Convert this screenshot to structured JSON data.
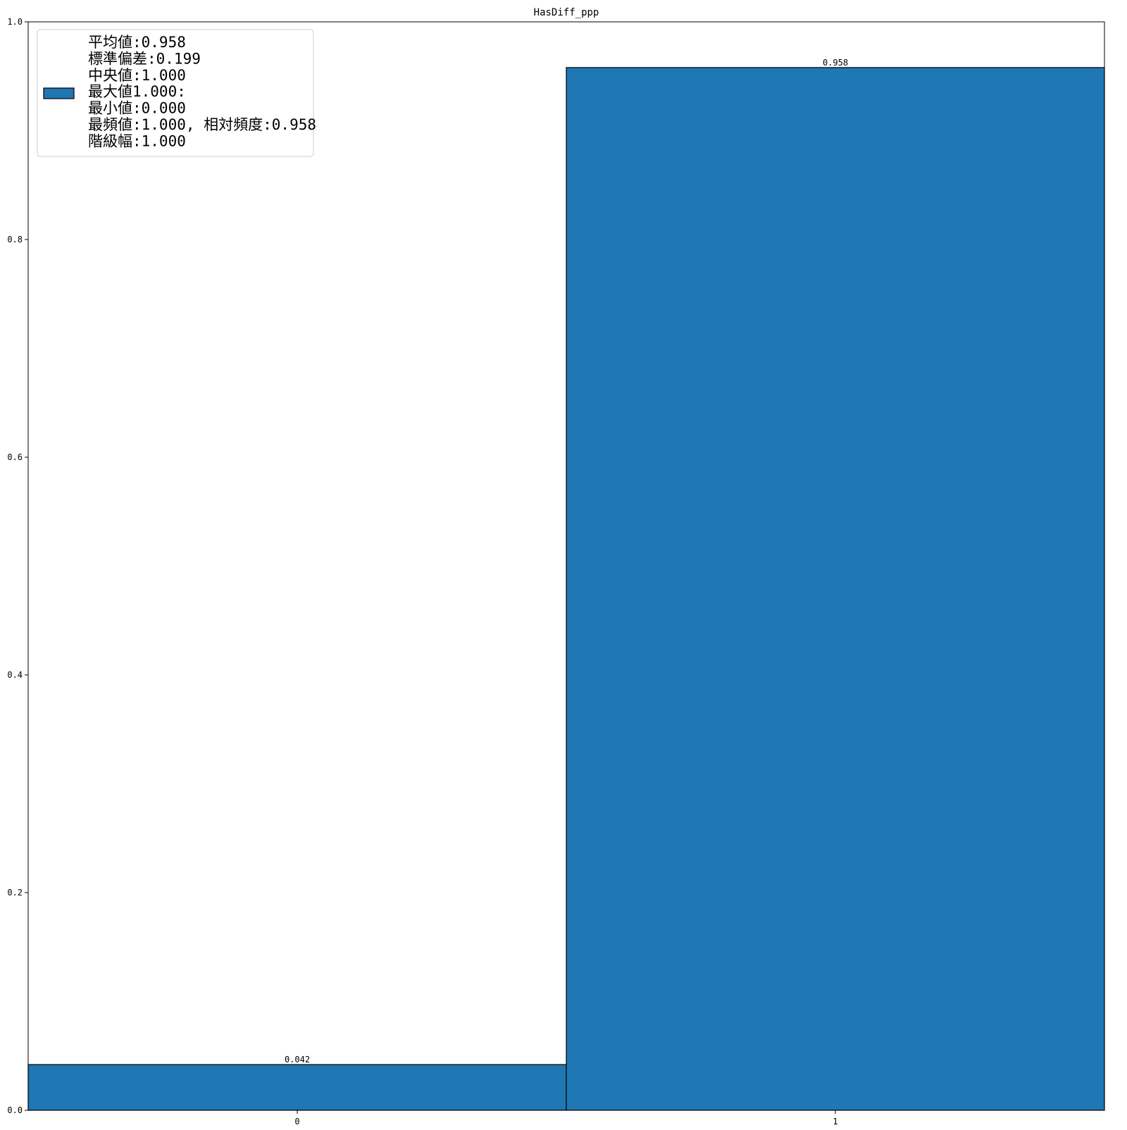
{
  "chart_data": {
    "type": "bar",
    "title": "HasDiff_ppp",
    "xlabel": "",
    "ylabel": "",
    "categories": [
      "0",
      "1"
    ],
    "values": [
      0.042,
      0.958
    ],
    "bar_labels": [
      "0.042",
      "0.958"
    ],
    "ylim": [
      0,
      1.0
    ],
    "xlim": [
      -0.5,
      1.5
    ],
    "yticks": [
      0.0,
      0.2,
      0.4,
      0.6,
      0.8,
      1.0
    ],
    "ytick_labels": [
      "0.0",
      "0.2",
      "0.4",
      "0.6",
      "0.8",
      "1.0"
    ],
    "grid": false,
    "legend": {
      "placement": "upper-left",
      "lines": [
        "平均値:0.958",
        "標準偏差:0.199",
        "中央値:1.000",
        "最大値1.000:",
        "最小値:0.000",
        "最頻値:1.000, 相対頻度:0.958",
        "階級幅:1.000"
      ]
    },
    "colors": {
      "bar": "#1f77b4",
      "edge": "#000000"
    }
  }
}
